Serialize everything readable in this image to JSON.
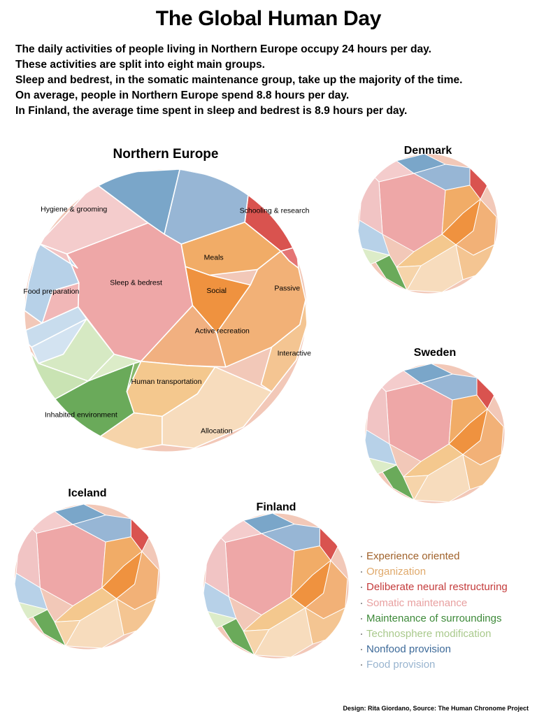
{
  "title": "The Global Human Day",
  "intro": [
    "The daily activities of people living in Northern Europe occupy 24 hours per day.",
    "These activities are split into eight main groups.",
    "Sleep and bedrest, in the somatic maintenance group, take up the majority of the time.",
    "On average, people in Northern Europe spend 8.8 hours per day.",
    "In Finland, the average time spent in sleep and bedrest is 8.9 hours per day."
  ],
  "legend": [
    {
      "label": "Experience oriented",
      "color": "#a0622b"
    },
    {
      "label": "Organization",
      "color": "#e0a96b"
    },
    {
      "label": "Deliberate neural restructuring",
      "color": "#c43b3b"
    },
    {
      "label": "Somatic maintenance",
      "color": "#e8a0a0"
    },
    {
      "label": "Maintenance of surroundings",
      "color": "#3e8a3a"
    },
    {
      "label": "Technosphere modification",
      "color": "#a9c98c"
    },
    {
      "label": "Nonfood provision",
      "color": "#3d6a99"
    },
    {
      "label": "Food provision",
      "color": "#98b4cf"
    }
  ],
  "credit": "Design: Rita Giordano, Source: The Human Chronome Project",
  "chart_data": [
    {
      "type": "voronoi-treemap",
      "title": "Northern Europe",
      "cells": [
        {
          "label": "Sleep & bedrest",
          "color": "#eea7a7"
        },
        {
          "label": "Hygiene & grooming",
          "color": "#f4cccc"
        },
        {
          "label": "",
          "color": "#f1c4c4"
        },
        {
          "label": "",
          "color": "#f1b7b7"
        },
        {
          "label": "",
          "color": "#f5c1c1"
        },
        {
          "label": "Meals",
          "color": "#f1ac67"
        },
        {
          "label": "Social",
          "color": "#ef923f"
        },
        {
          "label": "Active recreation",
          "color": "#f1b080"
        },
        {
          "label": "Passive",
          "color": "#f2b177"
        },
        {
          "label": "Interactive",
          "color": "#f4c592"
        },
        {
          "label": "Schooling & research",
          "color": "#d9534f"
        },
        {
          "label": "",
          "color": "#e47474"
        },
        {
          "label": "",
          "color": "#7aa6c9"
        },
        {
          "label": "",
          "color": "#97b6d5"
        },
        {
          "label": "Food preparation",
          "color": "#b7d1e8"
        },
        {
          "label": "",
          "color": "#c8dced"
        },
        {
          "label": "",
          "color": "#d3e3f1"
        },
        {
          "label": "Human transportation",
          "color": "#f4c88e"
        },
        {
          "label": "",
          "color": "#f6d4aa"
        },
        {
          "label": "Allocation",
          "color": "#f7dcbd"
        },
        {
          "label": "Inhabited environment",
          "color": "#6aaa5a"
        },
        {
          "label": "",
          "color": "#87b96c"
        },
        {
          "label": "",
          "color": "#d6e9c3"
        },
        {
          "label": "",
          "color": "#c9e3b3"
        },
        {
          "label": "",
          "color": "#dcecc8"
        }
      ]
    },
    {
      "type": "voronoi-treemap",
      "title": "Denmark",
      "cells": []
    },
    {
      "type": "voronoi-treemap",
      "title": "Sweden",
      "cells": []
    },
    {
      "type": "voronoi-treemap",
      "title": "Iceland",
      "cells": []
    },
    {
      "type": "voronoi-treemap",
      "title": "Finland",
      "cells": []
    }
  ]
}
